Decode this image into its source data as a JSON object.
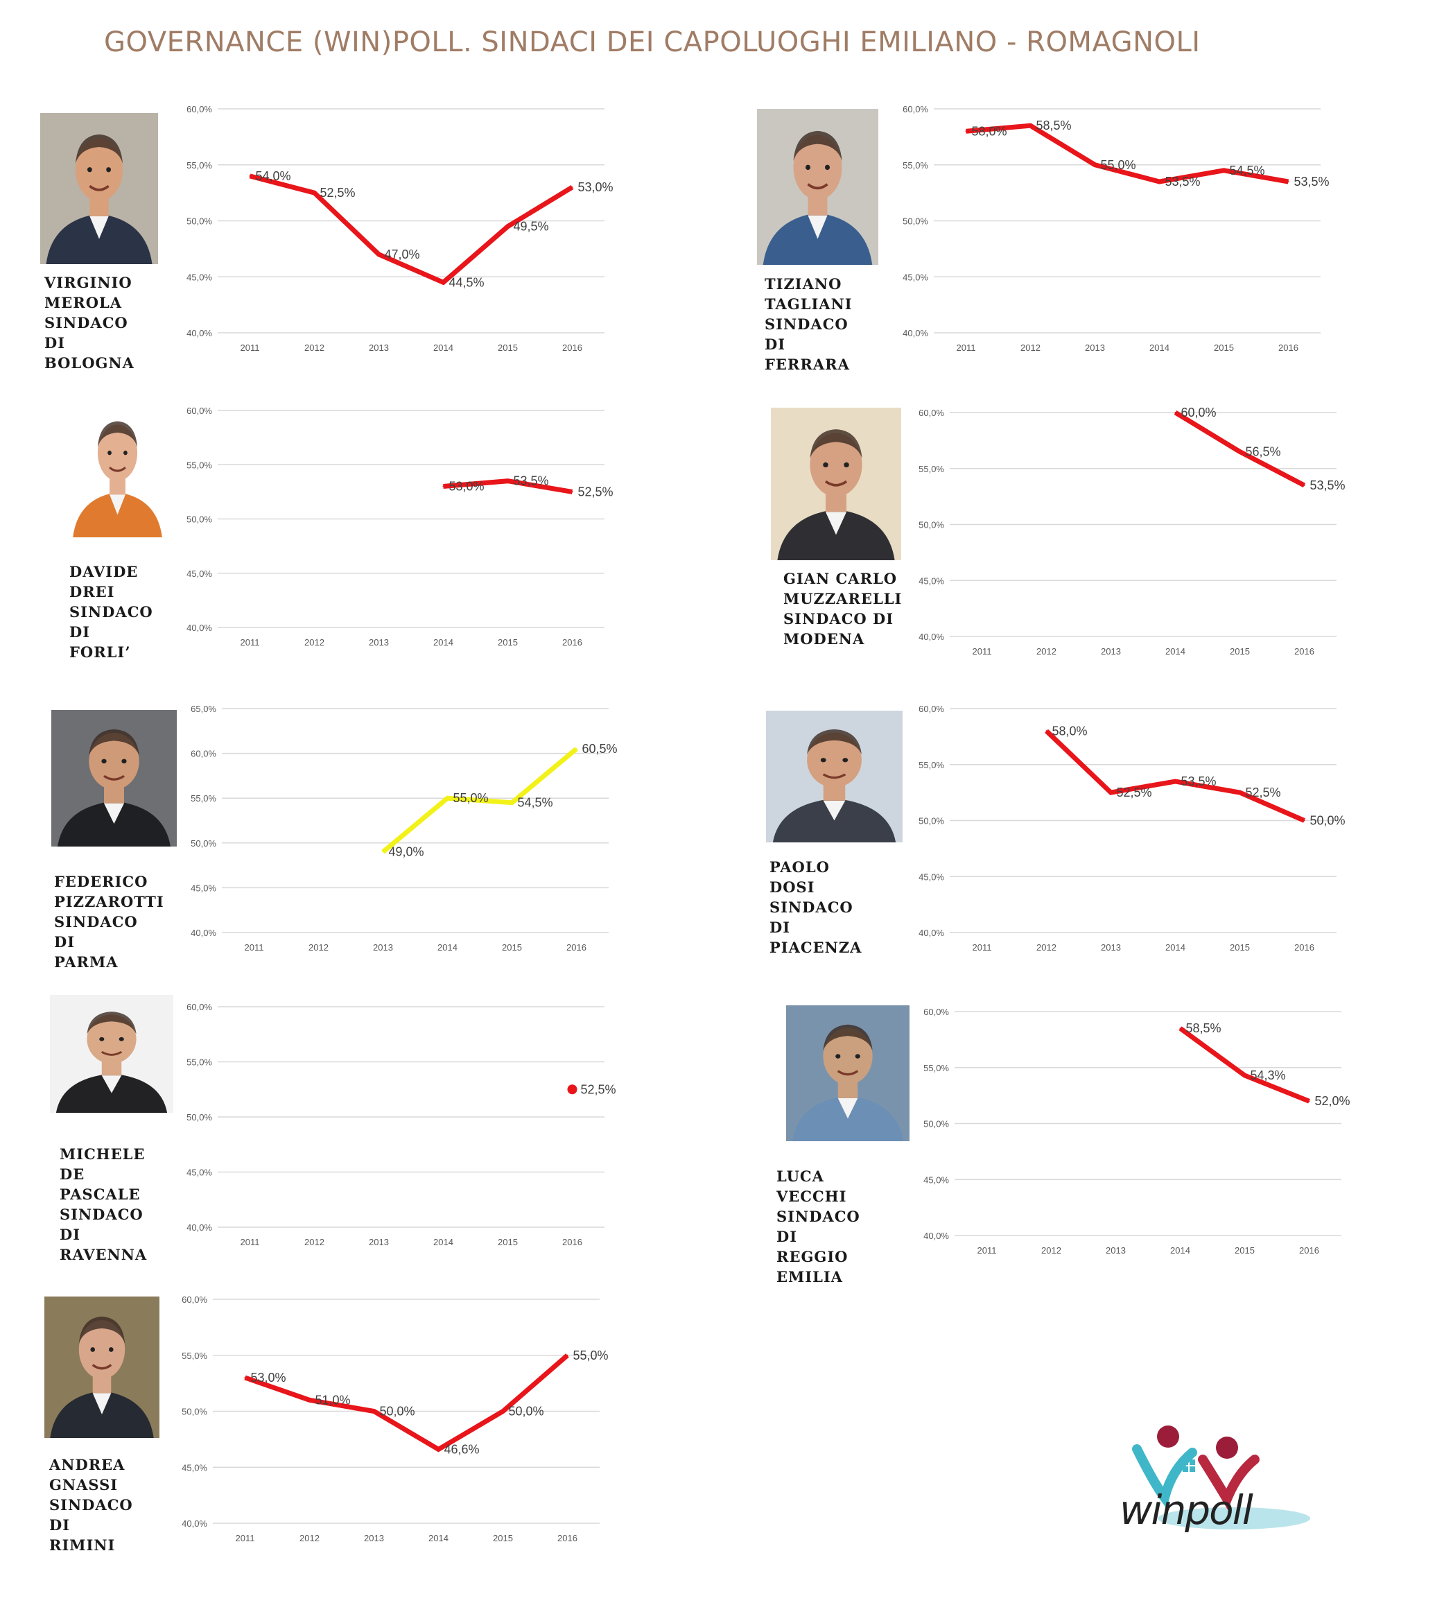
{
  "title": "GOVERNANCE (WIN)POLL. SINDACI DEI CAPOLUOGHI EMILIANO - ROMAGNOLI",
  "colors": {
    "red": "#e8151a",
    "yellow": "#f2f21a",
    "title": "#a07c65",
    "grid": "#d9d9d9",
    "axis_text": "#595959"
  },
  "logo": {
    "text": "winpoll"
  },
  "panels": [
    {
      "id": "bologna",
      "caption": [
        "VIRGINIO",
        "MEROLA",
        "SINDACO DI",
        "BOLOGNA"
      ]
    },
    {
      "id": "ferrara",
      "caption": [
        "TIZIANO",
        "TAGLIANI",
        "SINDACO DI",
        "FERRARA"
      ]
    },
    {
      "id": "forli",
      "caption": [
        "DAVIDE",
        "DREI",
        "SINDACO DI",
        "FORLI’"
      ]
    },
    {
      "id": "modena",
      "caption": [
        "GIAN CARLO",
        "MUZZARELLI",
        "SINDACO DI",
        "MODENA"
      ]
    },
    {
      "id": "parma",
      "caption": [
        "FEDERICO",
        "PIZZAROTTI",
        "SINDACO DI",
        "PARMA"
      ]
    },
    {
      "id": "piacenza",
      "caption": [
        "PAOLO",
        "DOSI",
        "SINDACO DI",
        "PIACENZA"
      ]
    },
    {
      "id": "ravenna",
      "caption": [
        "MICHELE",
        "DE PASCALE",
        "SINDACO DI",
        "RAVENNA"
      ]
    },
    {
      "id": "reggio-emilia",
      "caption": [
        "LUCA",
        "VECCHI",
        "SINDACO DI",
        "REGGIO EMILIA"
      ]
    },
    {
      "id": "rimini",
      "caption": [
        "ANDREA",
        "GNASSI",
        "SINDACO DI",
        "RIMINI"
      ]
    }
  ],
  "chart_data": [
    {
      "id": "bologna",
      "type": "line",
      "x": [
        "2011",
        "2012",
        "2013",
        "2014",
        "2015",
        "2016"
      ],
      "yticks": [
        "40,0%",
        "45,0%",
        "50,0%",
        "55,0%",
        "60,0%"
      ],
      "ylim": [
        40,
        60
      ],
      "color": "red",
      "values": [
        54.0,
        52.5,
        47.0,
        44.5,
        49.5,
        53.0
      ],
      "labels": [
        "54,0%",
        "52,5%",
        "47,0%",
        "44,5%",
        "49,5%",
        "53,0%"
      ]
    },
    {
      "id": "ferrara",
      "type": "line",
      "x": [
        "2011",
        "2012",
        "2013",
        "2014",
        "2015",
        "2016"
      ],
      "yticks": [
        "40,0%",
        "45,0%",
        "50,0%",
        "55,0%",
        "60,0%"
      ],
      "ylim": [
        40,
        60
      ],
      "color": "red",
      "values": [
        58.0,
        58.5,
        55.0,
        53.5,
        54.5,
        53.5
      ],
      "labels": [
        "58,0%",
        "58,5%",
        "55,0%",
        "53,5%",
        "54,5%",
        "53,5%"
      ]
    },
    {
      "id": "forli",
      "type": "line",
      "x": [
        "2011",
        "2012",
        "2013",
        "2014",
        "2015",
        "2016"
      ],
      "yticks": [
        "40,0%",
        "45,0%",
        "50,0%",
        "55,0%",
        "60,0%"
      ],
      "ylim": [
        40,
        60
      ],
      "color": "red",
      "values": [
        null,
        null,
        null,
        53.0,
        53.5,
        52.5
      ],
      "labels": [
        null,
        null,
        null,
        "53,0%",
        "53,5%",
        "52,5%"
      ]
    },
    {
      "id": "modena",
      "type": "line",
      "x": [
        "2011",
        "2012",
        "2013",
        "2014",
        "2015",
        "2016"
      ],
      "yticks": [
        "40,0%",
        "45,0%",
        "50,0%",
        "55,0%",
        "60,0%"
      ],
      "ylim": [
        40,
        60
      ],
      "color": "red",
      "values": [
        null,
        null,
        null,
        60.0,
        56.5,
        53.5
      ],
      "labels": [
        null,
        null,
        null,
        "60,0%",
        "56,5%",
        "53,5%"
      ]
    },
    {
      "id": "parma",
      "type": "line",
      "x": [
        "2011",
        "2012",
        "2013",
        "2014",
        "2015",
        "2016"
      ],
      "yticks": [
        "40,0%",
        "45,0%",
        "50,0%",
        "55,0%",
        "60,0%",
        "65,0%"
      ],
      "ylim": [
        40,
        65
      ],
      "color": "yellow",
      "values": [
        null,
        null,
        49.0,
        55.0,
        54.5,
        60.5
      ],
      "labels": [
        null,
        null,
        "49,0%",
        "55,0%",
        "54,5%",
        "60,5%"
      ]
    },
    {
      "id": "piacenza",
      "type": "line",
      "x": [
        "2011",
        "2012",
        "2013",
        "2014",
        "2015",
        "2016"
      ],
      "yticks": [
        "40,0%",
        "45,0%",
        "50,0%",
        "55,0%",
        "60,0%"
      ],
      "ylim": [
        40,
        60
      ],
      "color": "red",
      "values": [
        null,
        58.0,
        52.5,
        53.5,
        52.5,
        50.0
      ],
      "labels": [
        null,
        "58,0%",
        "52,5%",
        "53,5%",
        "52,5%",
        "50,0%"
      ]
    },
    {
      "id": "ravenna",
      "type": "scatter",
      "x": [
        "2011",
        "2012",
        "2013",
        "2014",
        "2015",
        "2016"
      ],
      "yticks": [
        "40,0%",
        "45,0%",
        "50,0%",
        "55,0%",
        "60,0%"
      ],
      "ylim": [
        40,
        60
      ],
      "color": "red",
      "values": [
        null,
        null,
        null,
        null,
        null,
        52.5
      ],
      "labels": [
        null,
        null,
        null,
        null,
        null,
        "52,5%"
      ]
    },
    {
      "id": "reggio-emilia",
      "type": "line",
      "x": [
        "2011",
        "2012",
        "2013",
        "2014",
        "2015",
        "2016"
      ],
      "yticks": [
        "40,0%",
        "45,0%",
        "50,0%",
        "55,0%",
        "60,0%"
      ],
      "ylim": [
        40,
        60
      ],
      "color": "red",
      "values": [
        null,
        null,
        null,
        58.5,
        54.3,
        52.0
      ],
      "labels": [
        null,
        null,
        null,
        "58,5%",
        "54,3%",
        "52,0%"
      ]
    },
    {
      "id": "rimini",
      "type": "line",
      "x": [
        "2011",
        "2012",
        "2013",
        "2014",
        "2015",
        "2016"
      ],
      "yticks": [
        "40,0%",
        "45,0%",
        "50,0%",
        "55,0%",
        "60,0%"
      ],
      "ylim": [
        40,
        60
      ],
      "color": "red",
      "values": [
        53.0,
        51.0,
        50.0,
        46.6,
        50.0,
        55.0
      ],
      "labels": [
        "53,0%",
        "51,0%",
        "50,0%",
        "46,6%",
        "50,0%",
        "55,0%"
      ]
    }
  ]
}
